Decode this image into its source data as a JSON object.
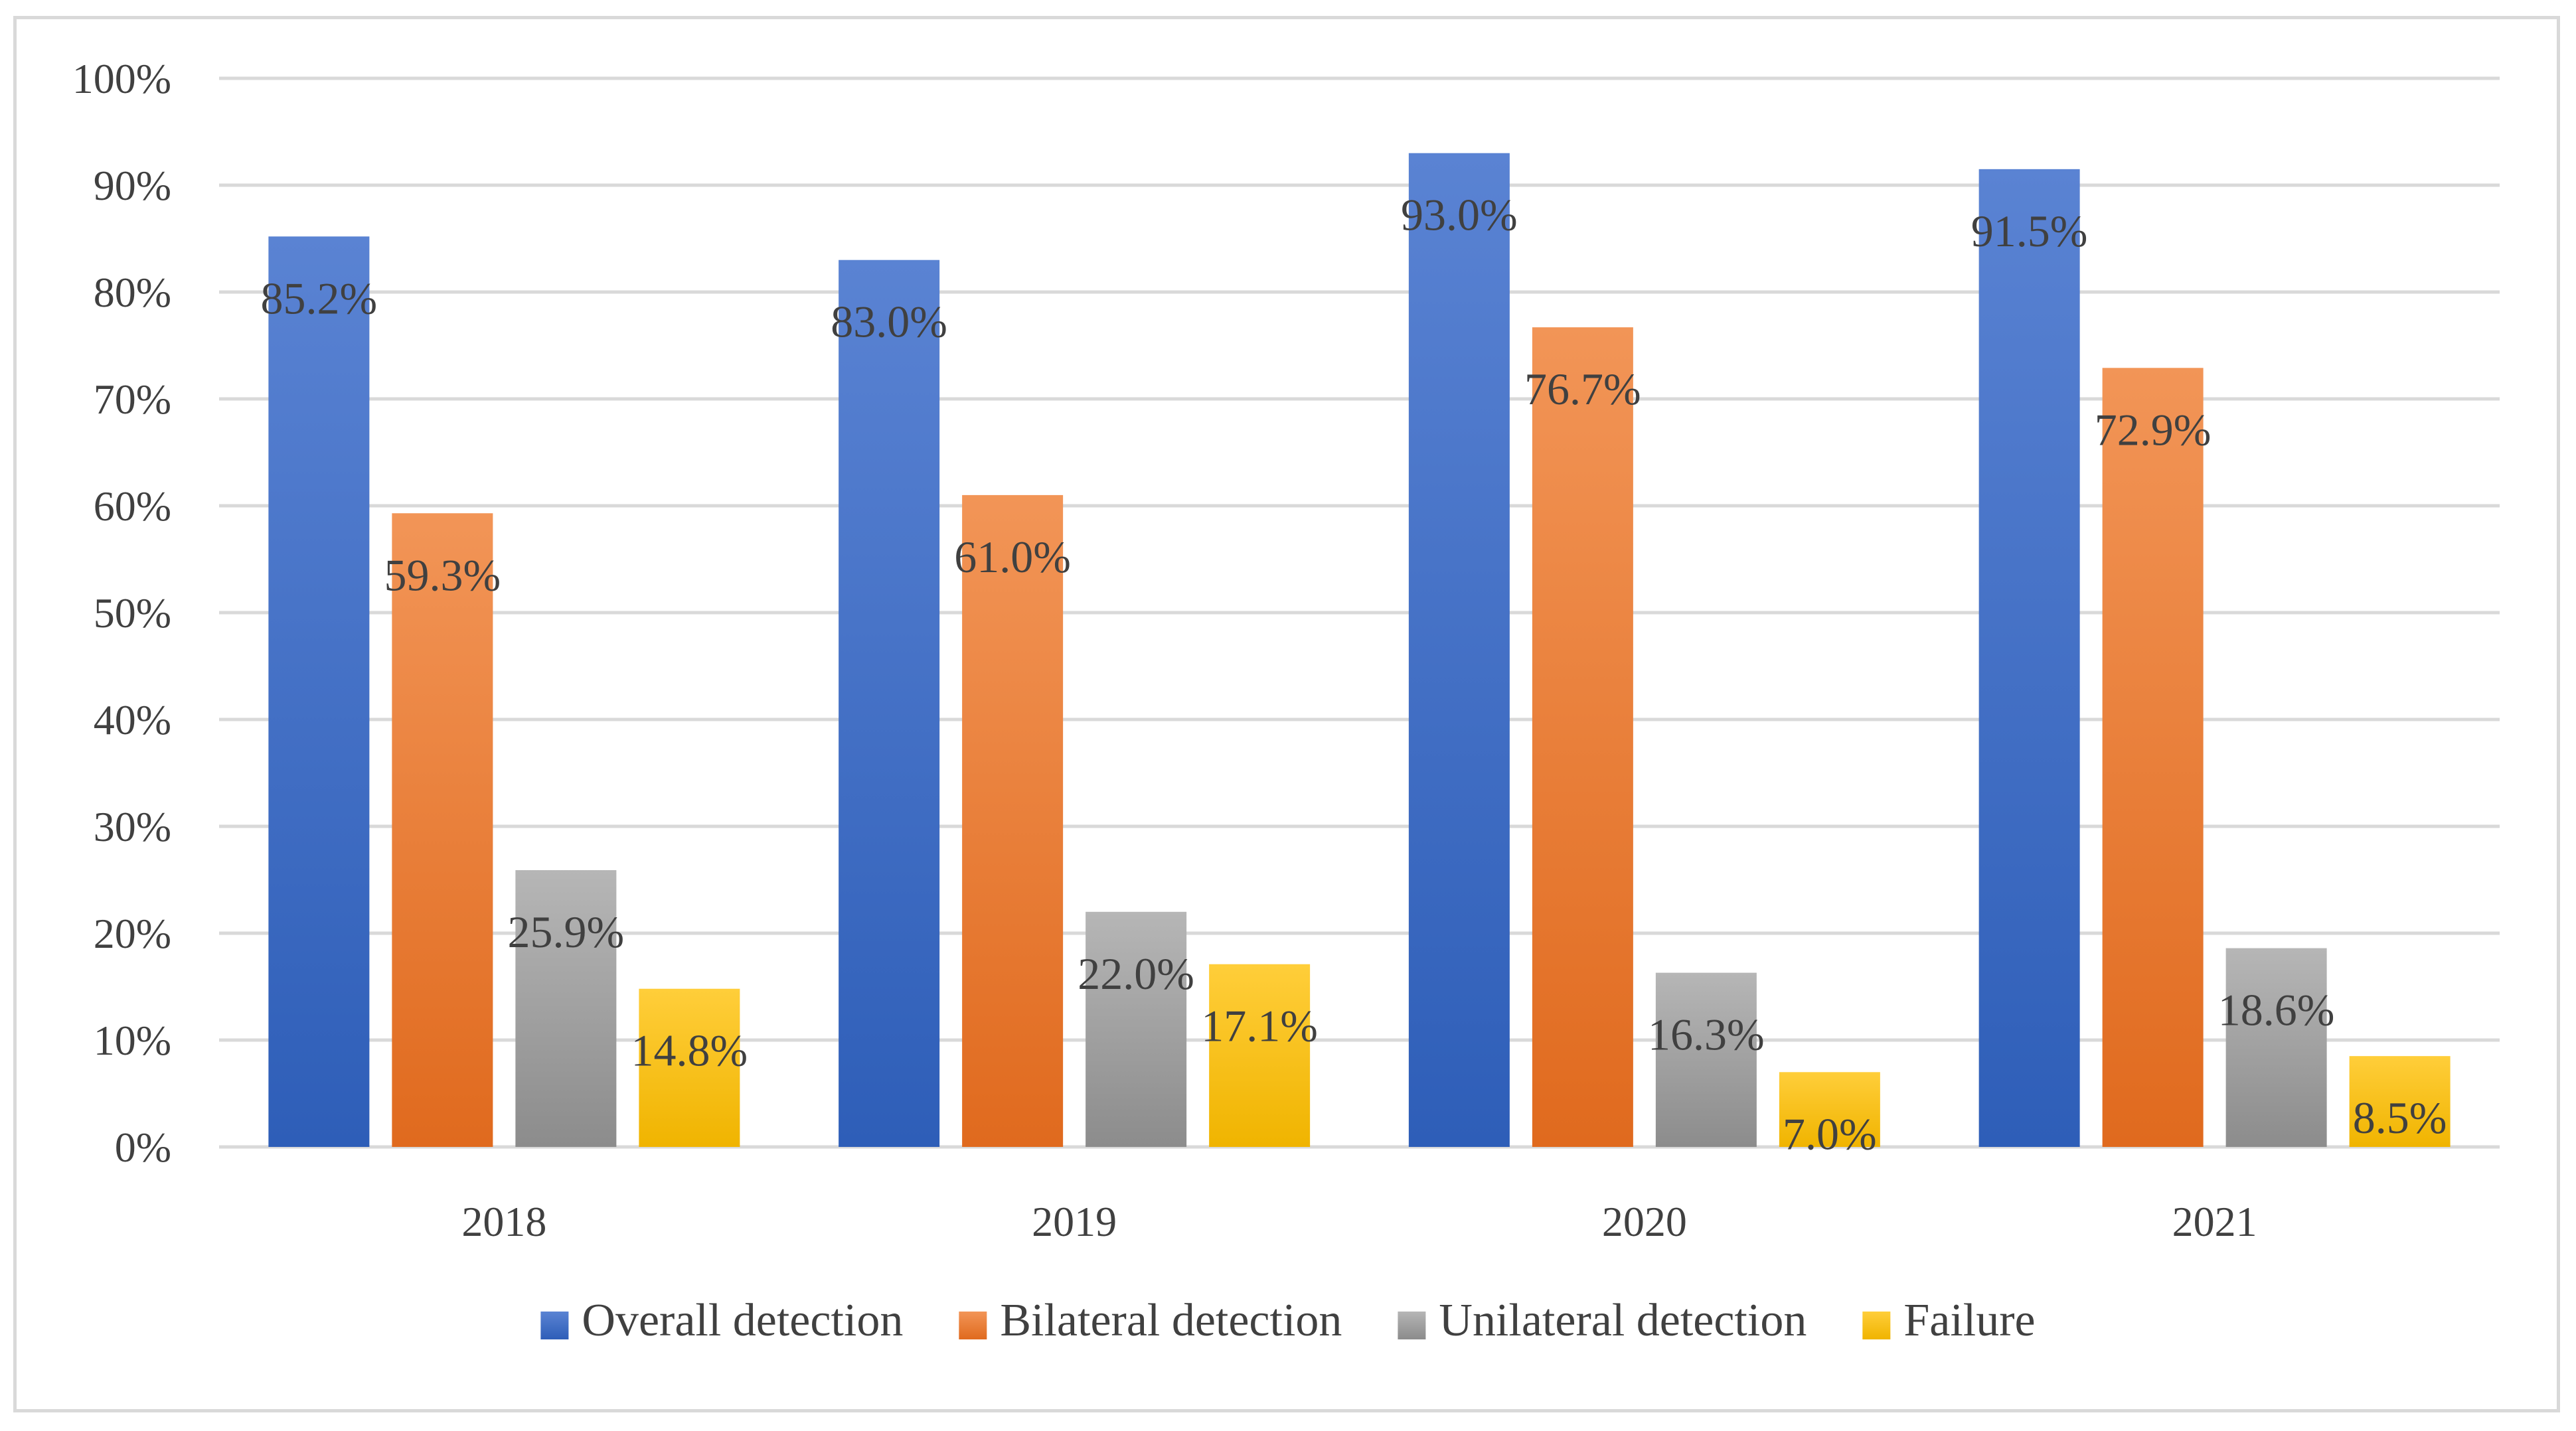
{
  "chart_data": {
    "type": "bar",
    "title": "",
    "xlabel": "",
    "ylabel": "",
    "categories": [
      "2018",
      "2019",
      "2020",
      "2021"
    ],
    "ylim": [
      0,
      100
    ],
    "yticks": [
      "0%",
      "10%",
      "20%",
      "30%",
      "40%",
      "50%",
      "60%",
      "70%",
      "80%",
      "90%",
      "100%"
    ],
    "grid": true,
    "legend_position": "bottom",
    "series": [
      {
        "name": "Overall detection",
        "values": [
          85.2,
          83.0,
          93.0,
          91.5
        ],
        "labels": [
          "85.2%",
          "83.0%",
          "93.0%",
          "91.5%"
        ],
        "color_top": "#5a83d3",
        "color_bottom": "#2e5eb8"
      },
      {
        "name": "Bilateral detection",
        "values": [
          59.3,
          61.0,
          76.7,
          72.9
        ],
        "labels": [
          "59.3%",
          "61.0%",
          "76.7%",
          "72.9%"
        ],
        "color_top": "#f29557",
        "color_bottom": "#e06a1e"
      },
      {
        "name": "Unilateral detection",
        "values": [
          25.9,
          22.0,
          16.3,
          18.6
        ],
        "labels": [
          "25.9%",
          "22.0%",
          "16.3%",
          "18.6%"
        ],
        "color_top": "#b6b6b6",
        "color_bottom": "#8c8c8c"
      },
      {
        "name": "Failure",
        "values": [
          14.8,
          17.1,
          7.0,
          8.5
        ],
        "labels": [
          "14.8%",
          "17.1%",
          "7.0%",
          "8.5%"
        ],
        "color_top": "#ffce3a",
        "color_bottom": "#f0b400"
      }
    ]
  }
}
